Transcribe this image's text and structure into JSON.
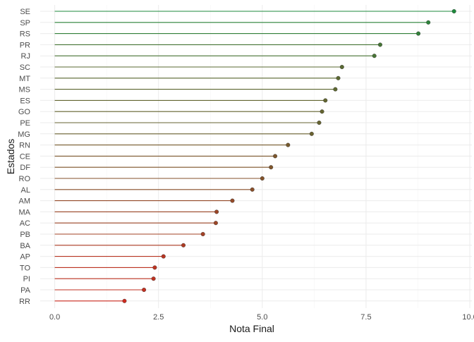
{
  "chart_data": {
    "type": "lollipop",
    "xlabel": "Nota Final",
    "ylabel": "Estados",
    "xlim": [
      -0.35,
      10.05
    ],
    "x_ticks": [
      0,
      2.5,
      5,
      7.5,
      10
    ],
    "x_tick_labels": [
      "0.0",
      "2.5",
      "5.0",
      "7.5",
      "10.0"
    ],
    "grid": true,
    "legend": "none",
    "color_low": "#cc2a1e",
    "color_high": "#1e8a3c",
    "categories": [
      "SE",
      "SP",
      "RS",
      "PR",
      "RJ",
      "SC",
      "MT",
      "MS",
      "ES",
      "GO",
      "PE",
      "MG",
      "RN",
      "CE",
      "DF",
      "RO",
      "AL",
      "AM",
      "MA",
      "AC",
      "PB",
      "BA",
      "AP",
      "TO",
      "PI",
      "PA",
      "RR"
    ],
    "values": [
      9.62,
      9.0,
      8.76,
      7.84,
      7.7,
      6.92,
      6.83,
      6.76,
      6.52,
      6.44,
      6.37,
      6.19,
      5.62,
      5.31,
      5.21,
      5.0,
      4.76,
      4.28,
      3.9,
      3.88,
      3.57,
      3.1,
      2.62,
      2.41,
      2.38,
      2.15,
      1.68
    ]
  }
}
